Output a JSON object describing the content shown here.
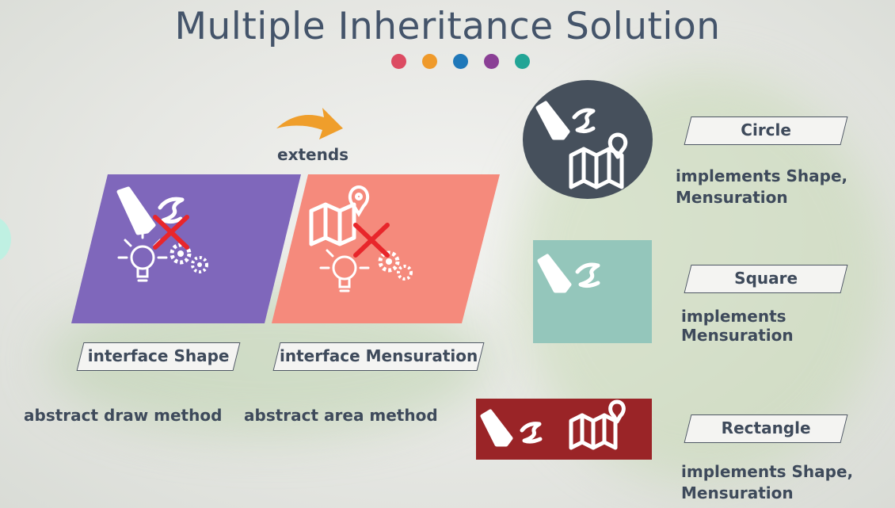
{
  "title": "Multiple Inheritance Solution",
  "colors": {
    "shape_fill": "#7f67bb",
    "mensuration_fill": "#f58a7c",
    "circle_fill": "#46505c",
    "square_fill": "#94c6bb",
    "rectangle_fill": "#9a2427",
    "arrow": "#ef9e2b",
    "cross": "#e8262b",
    "dots": [
      "#dc4b62",
      "#ef9a2b",
      "#1f78b9",
      "#8a3f95",
      "#22a596"
    ]
  },
  "extends_label": "extends",
  "interfaces": [
    {
      "label": "interface Shape",
      "method": "abstract draw method"
    },
    {
      "label": "interface Mensuration",
      "method": "abstract area method"
    }
  ],
  "classes": [
    {
      "name": "Circle",
      "implements": [
        "implements Shape,",
        "Mensuration"
      ]
    },
    {
      "name": "Square",
      "implements": [
        "implements Mensuration"
      ]
    },
    {
      "name": "Rectangle",
      "implements": [
        "implements Shape,",
        "Mensuration"
      ]
    }
  ],
  "icons": [
    "pen-icon",
    "lightbulb-icon",
    "gears-icon",
    "map-pin-icon",
    "cross-icon",
    "curved-arrow-icon"
  ]
}
